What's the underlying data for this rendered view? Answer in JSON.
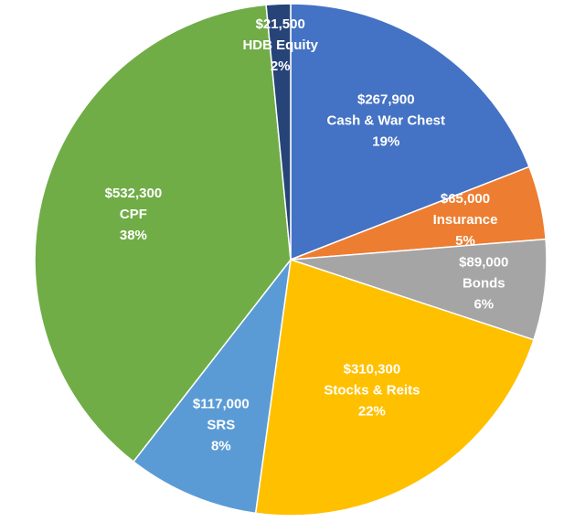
{
  "chart_data": {
    "type": "pie",
    "title": "",
    "slices": [
      {
        "category": "Cash & War Chest",
        "value": 267900,
        "value_label": "$267,900",
        "percent_label": "19%",
        "color": "#4472C4"
      },
      {
        "category": "Insurance",
        "value": 65000,
        "value_label": "$65,000",
        "percent_label": "5%",
        "color": "#ED7D31"
      },
      {
        "category": "Bonds",
        "value": 89000,
        "value_label": "$89,000",
        "percent_label": "6%",
        "color": "#A5A5A5"
      },
      {
        "category": "Stocks & Reits",
        "value": 310300,
        "value_label": "$310,300",
        "percent_label": "22%",
        "color": "#FFC000"
      },
      {
        "category": "SRS",
        "value": 117000,
        "value_label": "$117,000",
        "percent_label": "8%",
        "color": "#5B9BD5"
      },
      {
        "category": "CPF",
        "value": 532300,
        "value_label": "$532,300",
        "percent_label": "38%",
        "color": "#70AD47"
      },
      {
        "category": "HDB Equity",
        "value": 21500,
        "value_label": "$21,500",
        "percent_label": "2%",
        "color": "#264478"
      }
    ],
    "start_angle": "12 o'clock",
    "direction": "clockwise",
    "legend": "none",
    "data_labels": "inside"
  }
}
